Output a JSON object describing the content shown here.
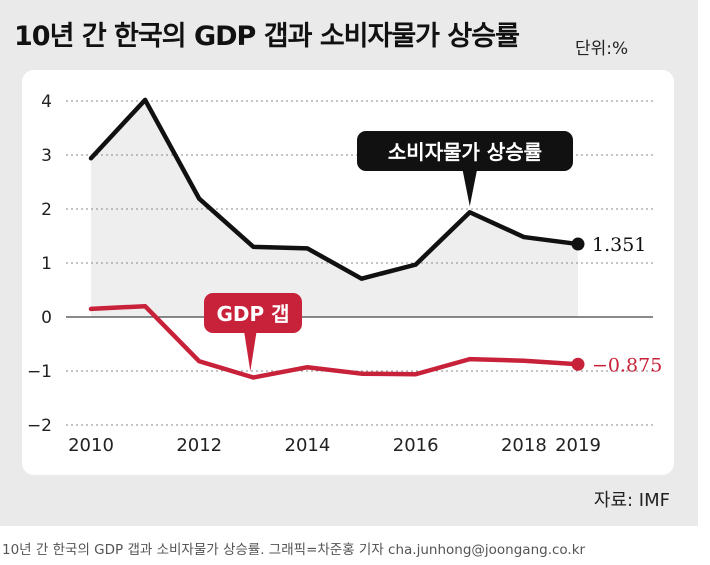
{
  "title": "10년 간 한국의 GDP 갭과 소비자물가 상승률",
  "unit_label": "단위:%",
  "source": "자료: IMF",
  "caption": "10년 간 한국의 GDP 갭과 소비자물가 상승률. 그래픽=차준홍 기자 cha.junhong@joongang.co.kr",
  "colors": {
    "cpi": "#111111",
    "gap": "#c8223a",
    "panel": "#eaeaea",
    "fill": "#eeeeee"
  },
  "chart_data": {
    "type": "line",
    "title": "10년 간 한국의 GDP 갭과 소비자물가 상승률",
    "x": [
      2010,
      2011,
      2012,
      2013,
      2014,
      2015,
      2016,
      2017,
      2018,
      2019
    ],
    "x_ticks": [
      "2010",
      "2012",
      "2014",
      "2016",
      "2018",
      "2019"
    ],
    "y_ticks": [
      "4",
      "3",
      "2",
      "1",
      "0",
      "-1",
      "-2"
    ],
    "ylim": [
      -2,
      4
    ],
    "grid": true,
    "series": [
      {
        "name": "소비자물가 상승률",
        "values": [
          2.94,
          4.02,
          2.19,
          1.3,
          1.27,
          0.71,
          0.97,
          1.94,
          1.48,
          1.351
        ],
        "end_label": "1.351"
      },
      {
        "name": "GDP 갭",
        "values": [
          0.15,
          0.2,
          -0.82,
          -1.12,
          -0.93,
          -1.05,
          -1.06,
          -0.78,
          -0.81,
          -0.875
        ],
        "end_label": "-0.875"
      }
    ]
  }
}
